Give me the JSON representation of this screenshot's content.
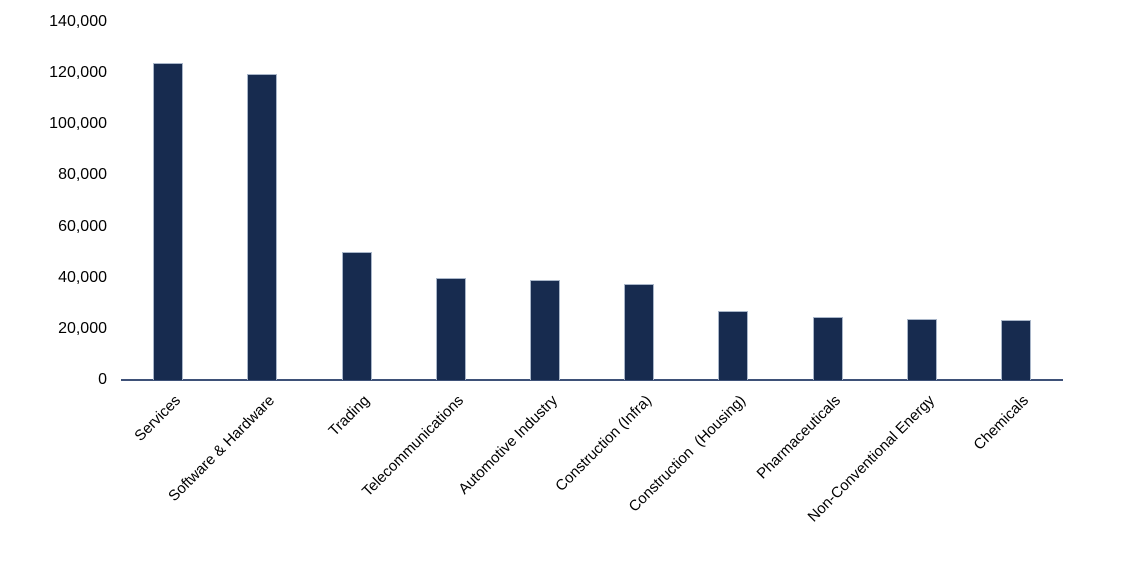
{
  "chart_data": {
    "type": "bar",
    "title": "",
    "xlabel": "",
    "ylabel": "",
    "categories": [
      "Services",
      "Software & Hardware",
      "Trading",
      "Telecommunications",
      "Automotive Industry",
      "Construction (Infra)",
      "Construction  (Housing)",
      "Pharmaceuticals",
      "Non-Conventional Energy",
      "Chemicals"
    ],
    "values": [
      124000,
      119500,
      50000,
      40000,
      39000,
      37500,
      27000,
      24500,
      24000,
      23500
    ],
    "ylim": [
      0,
      140000
    ],
    "ytick_interval": 20000,
    "ytick_labels": [
      "0",
      "20,000",
      "40,000",
      "60,000",
      "80,000",
      "100,000",
      "120,000",
      "140,000"
    ],
    "grid": false,
    "legend": false,
    "x_label_rotation_deg": 45,
    "colors": {
      "bar_fill": "#172B4F",
      "bar_border": "#A9B6C9",
      "axis_line": "#3E5178",
      "text": "#000000",
      "background": "#FFFFFF"
    }
  }
}
